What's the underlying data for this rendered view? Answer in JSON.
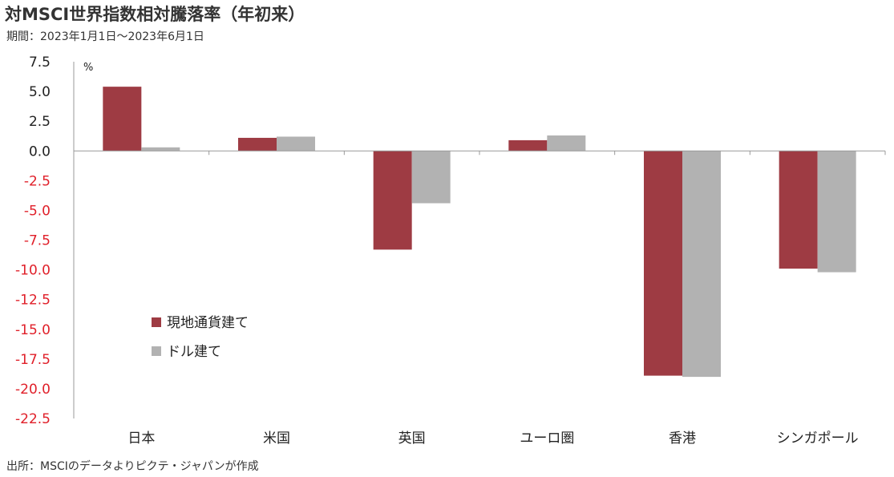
{
  "title": "対MSCI世界指数相対騰落率（年初来）",
  "subtitle": "期間：2023年1月1日～2023年6月1日",
  "source": "出所：MSCIのデータよりピクテ・ジャパンが作成",
  "colors": {
    "positive_tick": "#222222",
    "negative_tick": "#e0202a",
    "axis": "#999999"
  },
  "chart_data": {
    "type": "bar",
    "categories": [
      "日本",
      "米国",
      "英国",
      "ユーロ圏",
      "香港",
      "シンガポール"
    ],
    "series": [
      {
        "name": "現地通貨建て",
        "color": "#9e3b43",
        "values": [
          5.4,
          1.1,
          -8.3,
          0.9,
          -18.9,
          -9.9
        ]
      },
      {
        "name": "ドル建て",
        "color": "#b2b2b2",
        "values": [
          0.3,
          1.2,
          -4.4,
          1.3,
          -19.0,
          -10.2
        ]
      }
    ],
    "yticks": [
      "7.5",
      "5.0",
      "2.5",
      "0.0",
      "-2.5",
      "-5.0",
      "-7.5",
      "-10.0",
      "-12.5",
      "-15.0",
      "-17.5",
      "-20.0",
      "-22.5"
    ],
    "ylim": [
      -22.5,
      7.5
    ],
    "ylabel": "%",
    "xlabel": "",
    "grid": false,
    "legend_position": "lower-left inside plot"
  }
}
